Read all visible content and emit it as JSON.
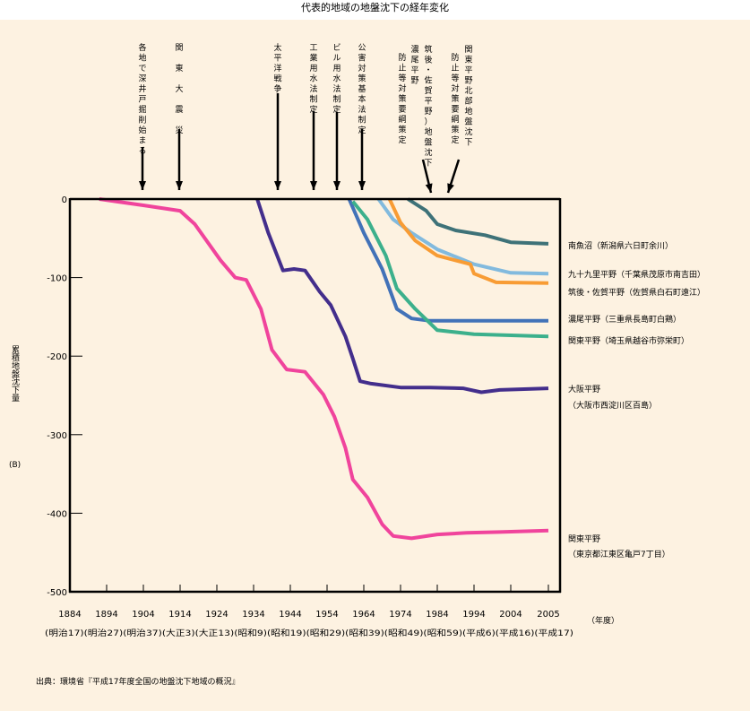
{
  "page": {
    "title": "代表的地域の地盤沈下の経年変化",
    "source": "出典：環境省『平成17年度全国の地盤沈下地域の概況』"
  },
  "colors": {
    "background": "#fdf2e1",
    "axis": "#000000"
  },
  "chart_data": {
    "type": "line",
    "title": "代表的地域の地盤沈下の経年変化",
    "xlabel": "（年度）",
    "ylabel": "累積地盤沈下量",
    "yunit": "(B)",
    "ylim": [
      -500,
      0
    ],
    "yticks": [
      0,
      -100,
      -200,
      -300,
      -400,
      -500
    ],
    "ytick_labels": [
      "0",
      "-100",
      "-200",
      "-300",
      "-400",
      "-500"
    ],
    "xticks": [
      1884,
      1894,
      1904,
      1914,
      1924,
      1934,
      1944,
      1954,
      1964,
      1974,
      1984,
      1994,
      2004,
      2005
    ],
    "xtick_labels": [
      "1884",
      "1894",
      "1904",
      "1914",
      "1924",
      "1934",
      "1944",
      "1954",
      "1964",
      "1974",
      "1984",
      "1994",
      "2004",
      "2005"
    ],
    "xtick_era_labels": [
      "(明治17)",
      "(明治27)",
      "(明治37)",
      "(大正3)",
      "(大正13)",
      "(昭和9)",
      "(昭和19)",
      "(昭和29)",
      "(昭和39)",
      "(昭和49)",
      "(昭和59)",
      "(平成6)",
      "(平成16)",
      "(平成17)"
    ],
    "grid": false,
    "events": [
      {
        "year": 1904,
        "label": "各地で深井戸掘削始まる"
      },
      {
        "year": 1914,
        "label": "関　東　大　震　災"
      },
      {
        "year": 1941,
        "label": "太平洋戦争"
      },
      {
        "year": 1951,
        "label": "工業用水法制定"
      },
      {
        "year": 1957,
        "label": "ビル用水法制定"
      },
      {
        "year": 1964,
        "label": "公害対策基本法制定"
      },
      {
        "year": 1983,
        "label": "筑後・佐賀平野）地盤沈下",
        "label2": "濃尾平野",
        "label3": "防止等対策要綱策定",
        "slanted": true
      },
      {
        "year": 1987,
        "label": "関東平野北部地盤沈下",
        "label2": "防止等対策要綱策定",
        "slanted": true
      }
    ],
    "series": [
      {
        "name": "関東平野(東京都江東区亀戸7丁目)",
        "label_lines": [
          "関東平野",
          "（東京都江東区亀戸7丁目）"
        ],
        "color": "#f0449c",
        "x": [
          1892,
          1904,
          1914,
          1918,
          1925,
          1929,
          1932,
          1936,
          1939,
          1943,
          1948,
          1953,
          1956,
          1959,
          1961,
          1965,
          1969,
          1972,
          1977,
          1984,
          1992,
          2001,
          2005
        ],
        "values": [
          0,
          -8,
          -15,
          -32,
          -78,
          -100,
          -103,
          -140,
          -192,
          -217,
          -220,
          -249,
          -277,
          -317,
          -357,
          -380,
          -414,
          -429,
          -432,
          -427,
          -425,
          -424,
          -422
        ]
      },
      {
        "name": "大阪平野(大阪市西淀川区百島)",
        "label_lines": [
          "大阪平野",
          "（大阪市西淀川区百島）"
        ],
        "color": "#432e8c",
        "x": [
          1935,
          1938,
          1942,
          1945,
          1948,
          1952,
          1955,
          1959,
          1961,
          1963,
          1966,
          1974,
          1982,
          1991,
          1996,
          2001,
          2005
        ],
        "values": [
          0,
          -43,
          -91,
          -89,
          -91,
          -118,
          -135,
          -175,
          -203,
          -232,
          -235,
          -240,
          -240,
          -241,
          -246,
          -243,
          -241
        ]
      },
      {
        "name": "濃尾平野(三重県長島町白鶏)",
        "label_lines": [
          "濃尾平野（三重県長島町白鶏）"
        ],
        "color": "#4272b8",
        "x": [
          1960,
          1964,
          1969,
          1973,
          1977,
          1982,
          1994,
          2005
        ],
        "values": [
          0,
          -43,
          -89,
          -140,
          -152,
          -155,
          -155,
          -155
        ]
      },
      {
        "name": "関東平野(埼玉県越谷市弥栄町)",
        "label_lines": [
          "関東平野（埼玉県越谷市弥栄町）"
        ],
        "color": "#3cb08c",
        "x": [
          1961,
          1965,
          1970,
          1973,
          1978,
          1984,
          1994,
          2005
        ],
        "values": [
          -3,
          -26,
          -72,
          -114,
          -140,
          -167,
          -172,
          -175
        ]
      },
      {
        "name": "九十九里平野(千葉県茂原市南吉田)",
        "label_lines": [
          "九十九里平野（千葉県茂原市南吉田）"
        ],
        "color": "#82bade",
        "x": [
          1968,
          1972,
          1977,
          1984,
          1994,
          2004,
          2005
        ],
        "values": [
          0,
          -26,
          -43,
          -64,
          -83,
          -94,
          -95
        ]
      },
      {
        "name": "筑後・佐賀平野(佐賀県白石町遠江)",
        "label_lines": [
          "筑後・佐賀平野（佐賀県白石町遠江）"
        ],
        "color": "#f89c34",
        "x": [
          1971,
          1974,
          1978,
          1984,
          1993,
          1994,
          2000,
          2005
        ],
        "values": [
          0,
          -30,
          -53,
          -72,
          -83,
          -95,
          -106,
          -107
        ]
      },
      {
        "name": "南魚沼(新潟県六日町余川)",
        "label_lines": [
          "南魚沼（新潟県六日町余川）"
        ],
        "color": "#3e7278",
        "x": [
          1976,
          1981,
          1984,
          1989,
          1997,
          2004,
          2005
        ],
        "values": [
          0,
          -15,
          -32,
          -40,
          -46,
          -55,
          -57
        ]
      }
    ]
  }
}
